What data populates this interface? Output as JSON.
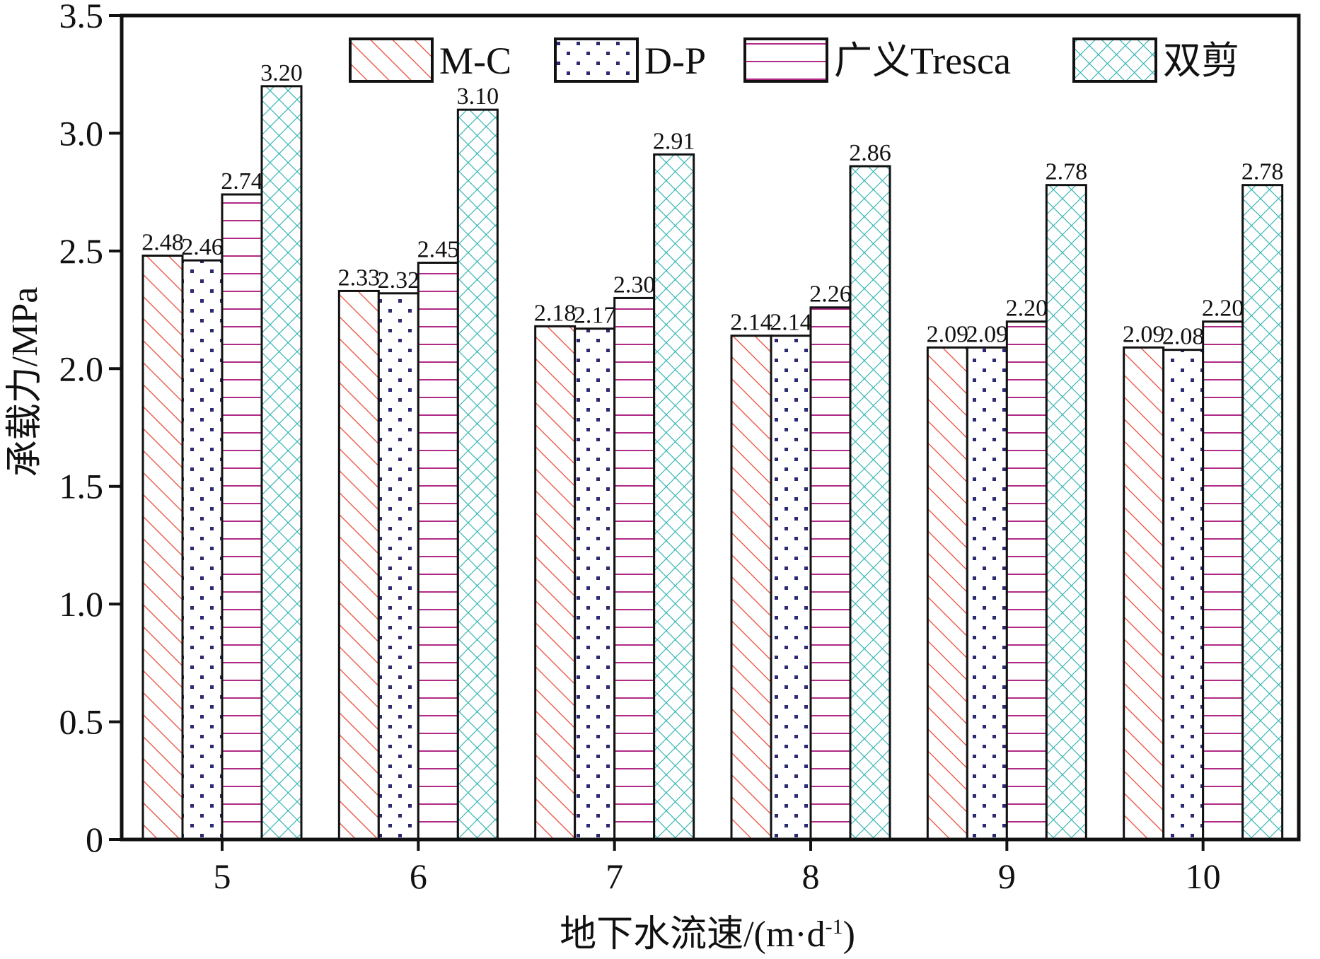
{
  "chart_data": {
    "type": "bar",
    "title": "",
    "xlabel": "地下水流速/(m·d",
    "xlabel_sup": "-1",
    "xlabel_tail": ")",
    "ylabel": "承载力/MPa",
    "categories": [
      "5",
      "6",
      "7",
      "8",
      "9",
      "10"
    ],
    "ylim": [
      0,
      3.5
    ],
    "yticks": [
      0,
      0.5,
      1.0,
      1.5,
      2.0,
      2.5,
      3.0,
      3.5
    ],
    "ytick_labels": [
      "0",
      "0.5",
      "1.0",
      "1.5",
      "2.0",
      "2.5",
      "3.0",
      "3.5"
    ],
    "grid": false,
    "legend_position": "top-right",
    "series": [
      {
        "name": "M-C",
        "pattern": "diagonal-hatch",
        "color": "#e8412c",
        "values": [
          2.48,
          2.33,
          2.18,
          2.14,
          2.09,
          2.09
        ],
        "labels": [
          "2.48",
          "2.33",
          "2.18",
          "2.14",
          "2.09",
          "2.09"
        ]
      },
      {
        "name": "D-P",
        "pattern": "dots",
        "color": "#2b2a73",
        "values": [
          2.46,
          2.32,
          2.17,
          2.14,
          2.09,
          2.08
        ],
        "labels": [
          "2.46",
          "2.32",
          "2.17",
          "2.14",
          "2.09",
          "2.08"
        ]
      },
      {
        "name": "广义Tresca",
        "pattern": "horizontal-lines",
        "color": "#b02a86",
        "values": [
          2.74,
          2.45,
          2.3,
          2.26,
          2.2,
          2.2
        ],
        "labels": [
          "2.74",
          "2.45",
          "2.30",
          "2.26",
          "2.20",
          "2.20"
        ]
      },
      {
        "name": "双剪",
        "pattern": "crosshatch",
        "color": "#2bb0b0",
        "values": [
          3.2,
          3.1,
          2.91,
          2.86,
          2.78,
          2.78
        ],
        "labels": [
          "3.20",
          "3.10",
          "2.91",
          "2.86",
          "2.78",
          "2.78"
        ]
      }
    ]
  }
}
